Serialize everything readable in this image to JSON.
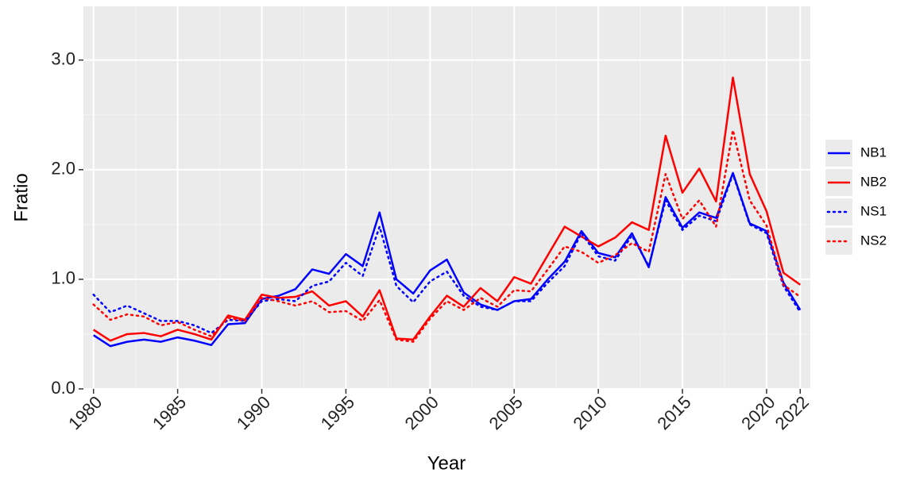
{
  "chart_data": {
    "type": "line",
    "x_label": "Year",
    "y_label": "Fratio",
    "x": [
      1980,
      1981,
      1982,
      1983,
      1984,
      1985,
      1986,
      1987,
      1988,
      1989,
      1990,
      1991,
      1992,
      1993,
      1994,
      1995,
      1996,
      1997,
      1998,
      1999,
      2000,
      2001,
      2002,
      2003,
      2004,
      2005,
      2006,
      2007,
      2008,
      2009,
      2010,
      2011,
      2012,
      2013,
      2014,
      2015,
      2016,
      2017,
      2018,
      2019,
      2020,
      2021,
      2022
    ],
    "series": [
      {
        "name": "NB1",
        "color": "#0000ff",
        "linestyle": "solid",
        "values": [
          0.49,
          0.39,
          0.43,
          0.45,
          0.43,
          0.47,
          0.44,
          0.4,
          0.59,
          0.6,
          0.82,
          0.85,
          0.91,
          1.09,
          1.05,
          1.23,
          1.12,
          1.61,
          1.0,
          0.87,
          1.08,
          1.18,
          0.88,
          0.77,
          0.72,
          0.8,
          0.82,
          1.0,
          1.16,
          1.44,
          1.24,
          1.2,
          1.42,
          1.11,
          1.75,
          1.47,
          1.61,
          1.56,
          1.97,
          1.51,
          1.44,
          0.97,
          0.72
        ]
      },
      {
        "name": "NB2",
        "color": "#ff0000",
        "linestyle": "solid",
        "values": [
          0.54,
          0.44,
          0.5,
          0.51,
          0.48,
          0.54,
          0.5,
          0.45,
          0.67,
          0.63,
          0.86,
          0.83,
          0.84,
          0.89,
          0.76,
          0.8,
          0.66,
          0.9,
          0.46,
          0.45,
          0.66,
          0.85,
          0.75,
          0.92,
          0.8,
          1.02,
          0.96,
          1.22,
          1.48,
          1.39,
          1.3,
          1.38,
          1.52,
          1.45,
          2.31,
          1.79,
          2.01,
          1.71,
          2.84,
          1.96,
          1.62,
          1.06,
          0.95
        ]
      },
      {
        "name": "NS1",
        "color": "#0000ff",
        "linestyle": "dotted",
        "values": [
          0.86,
          0.7,
          0.76,
          0.69,
          0.62,
          0.62,
          0.58,
          0.51,
          0.63,
          0.62,
          0.8,
          0.82,
          0.8,
          0.94,
          0.98,
          1.15,
          1.03,
          1.48,
          0.94,
          0.79,
          0.98,
          1.07,
          0.85,
          0.75,
          0.72,
          0.8,
          0.8,
          0.97,
          1.12,
          1.42,
          1.21,
          1.17,
          1.4,
          1.12,
          1.72,
          1.45,
          1.58,
          1.53,
          1.96,
          1.5,
          1.42,
          0.94,
          0.7
        ]
      },
      {
        "name": "NS2",
        "color": "#ff0000",
        "linestyle": "dotted",
        "values": [
          0.77,
          0.63,
          0.68,
          0.66,
          0.58,
          0.61,
          0.54,
          0.48,
          0.65,
          0.62,
          0.83,
          0.8,
          0.76,
          0.8,
          0.7,
          0.71,
          0.62,
          0.81,
          0.45,
          0.43,
          0.64,
          0.8,
          0.72,
          0.83,
          0.75,
          0.9,
          0.89,
          1.09,
          1.3,
          1.25,
          1.15,
          1.22,
          1.33,
          1.25,
          1.96,
          1.55,
          1.72,
          1.48,
          2.36,
          1.72,
          1.49,
          0.95,
          0.84
        ]
      }
    ],
    "xlim": [
      1979.4,
      2022.6
    ],
    "xticks": [
      1980,
      1985,
      1990,
      1995,
      2000,
      2005,
      2010,
      2015,
      2020,
      2022
    ],
    "ylim": [
      0,
      3.49
    ],
    "yticks": [
      {
        "value": 0,
        "label": "0.0"
      },
      {
        "value": 1,
        "label": "1.0"
      },
      {
        "value": 2,
        "label": "2.0"
      },
      {
        "value": 3,
        "label": "3.0"
      }
    ],
    "grid": true,
    "legend": "right"
  }
}
